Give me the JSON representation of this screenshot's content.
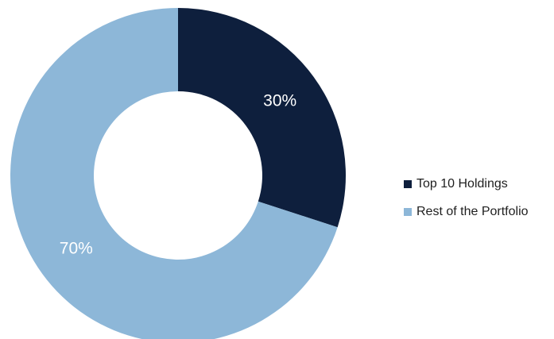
{
  "chart_data": {
    "type": "pie",
    "donut": true,
    "categories": [
      "Top 10 Holdings",
      "Rest of the Portfolio"
    ],
    "values": [
      30,
      70
    ],
    "labels": [
      "30%",
      "70%"
    ],
    "colors": [
      "#0e1f3d",
      "#8db7d8"
    ],
    "legend_position": "right"
  }
}
